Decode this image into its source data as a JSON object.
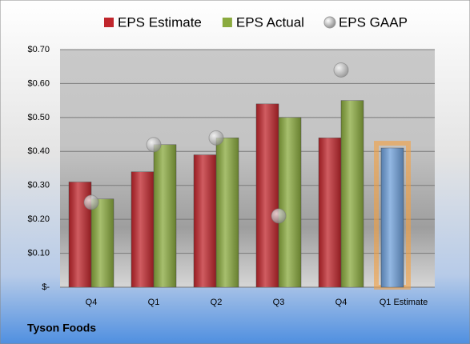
{
  "chart_data": {
    "type": "bar",
    "title": "Tyson Foods",
    "categories": [
      "Q4",
      "Q1",
      "Q2",
      "Q3",
      "Q4",
      "Q1 Estimate"
    ],
    "series": [
      {
        "name": "EPS Estimate",
        "color": "#c0262c",
        "colors": [
          "#c0262c",
          "#c0262c",
          "#c0262c",
          "#c0262c",
          "#c0262c",
          "#6fa0da"
        ],
        "values": [
          0.31,
          0.34,
          0.39,
          0.54,
          0.44,
          0.41
        ]
      },
      {
        "name": "EPS Actual",
        "color": "#8aaa3e",
        "values": [
          0.26,
          0.42,
          0.44,
          0.5,
          0.55,
          null
        ]
      },
      {
        "name": "EPS GAAP",
        "color": "#a8a8a8",
        "marker": "circle",
        "values": [
          0.25,
          0.42,
          0.44,
          0.21,
          0.64,
          null
        ]
      }
    ],
    "ylim": [
      0,
      0.7
    ],
    "yticks": [
      {
        "value": 0,
        "label": "$-"
      },
      {
        "value": 0.1,
        "label": "$0.10"
      },
      {
        "value": 0.2,
        "label": "$0.20"
      },
      {
        "value": 0.3,
        "label": "$0.30"
      },
      {
        "value": 0.4,
        "label": "$0.40"
      },
      {
        "value": 0.5,
        "label": "$0.50"
      },
      {
        "value": 0.6,
        "label": "$0.60"
      },
      {
        "value": 0.7,
        "label": "$0.70"
      }
    ],
    "grid": true,
    "legend": "top"
  }
}
